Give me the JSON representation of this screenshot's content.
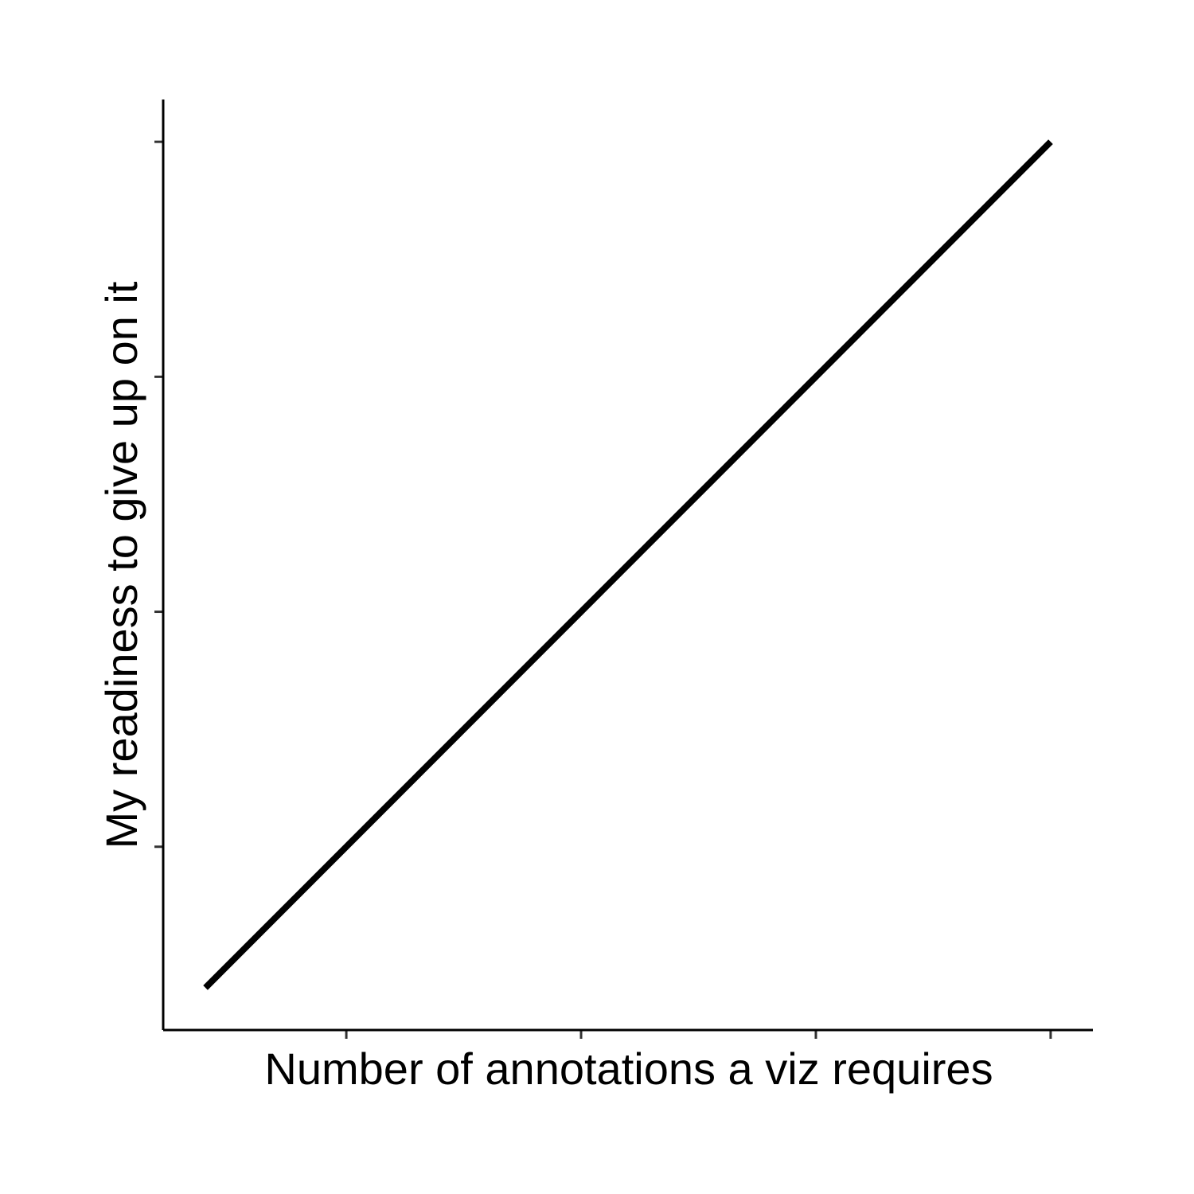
{
  "chart_data": {
    "type": "line",
    "xlabel": "Number of annotations a viz requires",
    "ylabel": "My readiness to give up on it",
    "x": [
      1,
      10
    ],
    "series": [
      {
        "values": [
          1,
          10
        ]
      }
    ],
    "xlim": [
      0.55,
      10.45
    ],
    "ylim": [
      0.55,
      10.45
    ],
    "x_ticks": [
      2.5,
      5,
      7.5,
      10
    ],
    "y_ticks": [
      2.5,
      5,
      7.5,
      10
    ],
    "tick_labels_shown": false,
    "grid": false,
    "legend": "none",
    "line_color": "#000000"
  }
}
